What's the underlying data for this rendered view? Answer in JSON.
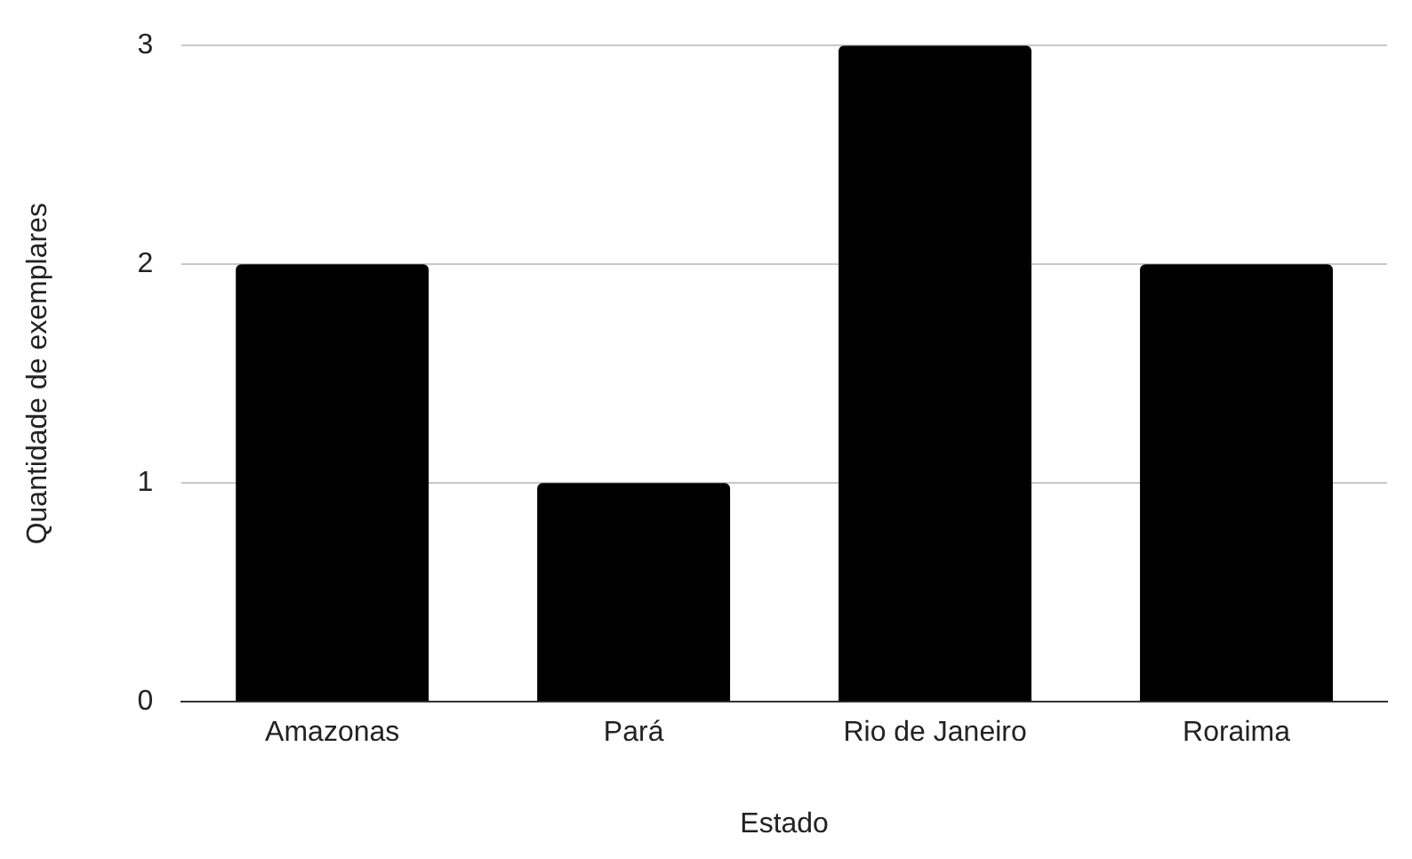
{
  "chart_data": {
    "type": "bar",
    "xlabel": "Estado",
    "ylabel": "Quantidade de exemplares",
    "categories": [
      "Amazonas",
      "Pará",
      "Rio de Janeiro",
      "Roraima"
    ],
    "values": [
      2,
      1,
      3,
      2
    ],
    "color": "#000000",
    "ylim": [
      0,
      3
    ],
    "yticks": [
      0,
      1,
      2,
      3
    ],
    "grid": "y",
    "legend": false
  }
}
